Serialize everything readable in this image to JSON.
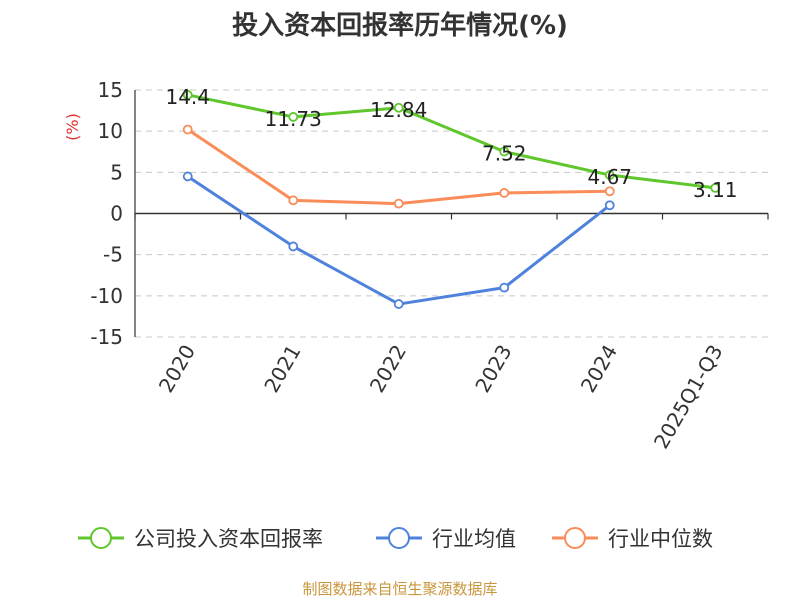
{
  "chart_data": {
    "type": "line",
    "title": "投入资本回报率历年情况(%)",
    "ylabel": "(%)",
    "categories": [
      "2020",
      "2021",
      "2022",
      "2023",
      "2024",
      "2025Q1-Q3"
    ],
    "ylim": [
      -15,
      15
    ],
    "yticks": [
      15,
      10,
      5,
      0,
      -5,
      -10,
      -15
    ],
    "grid": true,
    "legend_position": "bottom",
    "series": [
      {
        "name": "公司投入资本回报率",
        "color": "#5fc62c",
        "values": [
          14.4,
          11.73,
          12.84,
          7.52,
          4.67,
          3.11
        ],
        "labels": [
          "14.4",
          "11.73",
          "12.84",
          "7.52",
          "4.67",
          "3.11"
        ]
      },
      {
        "name": "行业均值",
        "color": "#4f82dc",
        "values": [
          4.5,
          -4,
          -11,
          -9,
          1,
          null
        ]
      },
      {
        "name": "行业中位数",
        "color": "#fa8c5a",
        "values": [
          10.2,
          1.6,
          1.2,
          2.5,
          2.7,
          null
        ]
      }
    ],
    "source": "制图数据来自恒生聚源数据库",
    "source_color": "#c8963c",
    "ylabel_color": "#e03030"
  }
}
